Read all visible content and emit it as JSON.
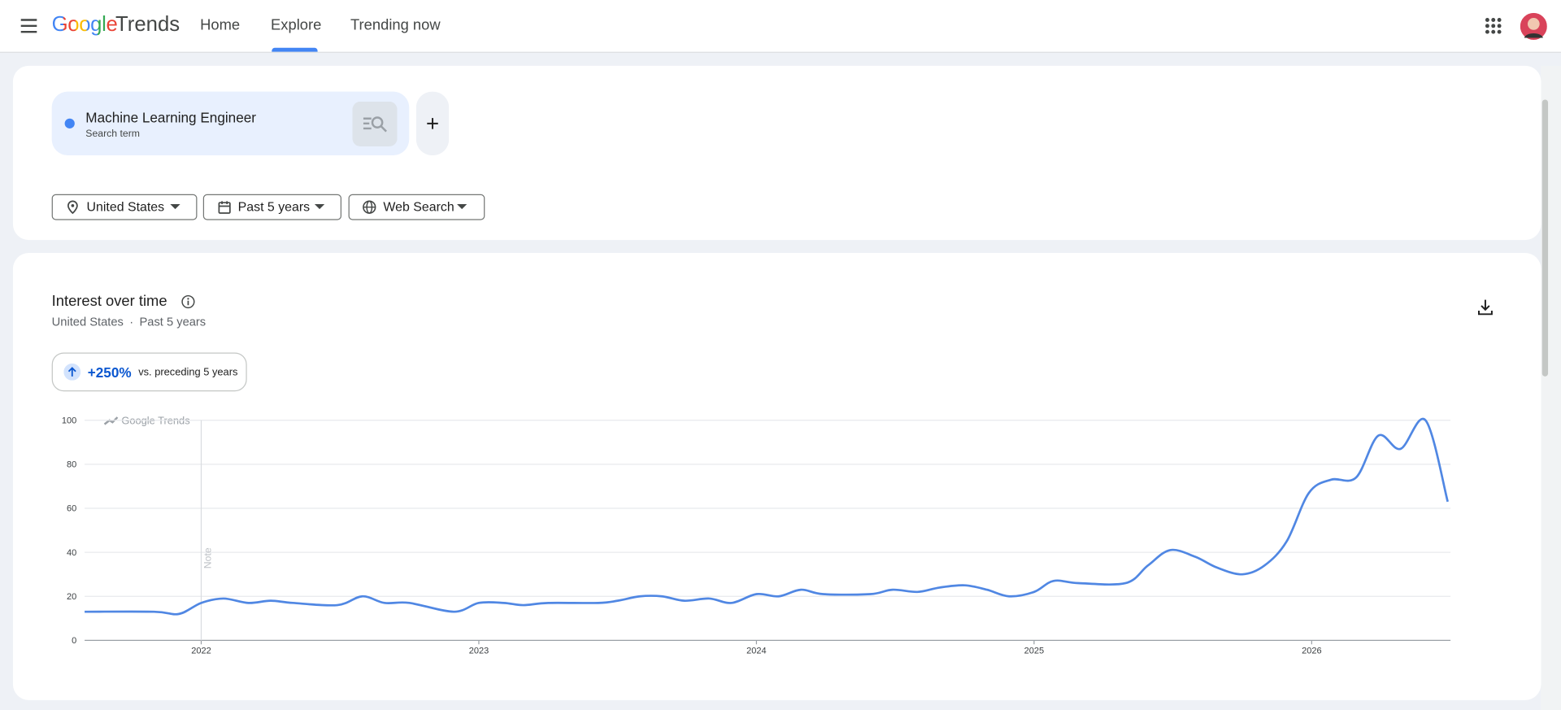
{
  "header": {
    "logo_google": "Google",
    "logo_trends": "Trends",
    "nav": [
      "Home",
      "Explore",
      "Trending now"
    ]
  },
  "search": {
    "term": "Machine Learning Engineer",
    "sublabel": "Search term"
  },
  "filters": [
    "United States",
    "Past 5 years",
    "Web Search"
  ],
  "interest": {
    "location": "United States",
    "period": "Past 5 years",
    "change": "+250%",
    "change_note": "vs. preceding 5 years",
    "watermark": "Google Trends",
    "note": "Note"
  },
  "chart_data": {
    "type": "line",
    "title": "Interest over time",
    "x": [
      2021.58,
      2021.83,
      2021.92,
      2022.0,
      2022.08,
      2022.17,
      2022.25,
      2022.33,
      2022.49,
      2022.58,
      2022.66,
      2022.75,
      2022.91,
      2023.0,
      2023.09,
      2023.16,
      2023.25,
      2023.43,
      2023.5,
      2023.58,
      2023.66,
      2023.74,
      2023.83,
      2023.91,
      2024.0,
      2024.08,
      2024.16,
      2024.24,
      2024.41,
      2024.49,
      2024.58,
      2024.66,
      2024.75,
      2024.83,
      2024.91,
      2025.0,
      2025.07,
      2025.16,
      2025.33,
      2025.41,
      2025.49,
      2025.58,
      2025.66,
      2025.75,
      2025.83,
      2025.91,
      2025.99,
      2026.07,
      2026.16,
      2026.24,
      2026.32,
      2026.41,
      2026.49
    ],
    "series": [
      {
        "name": "Machine Learning Engineer",
        "color": "#5087e3",
        "values": [
          13,
          13,
          12,
          17,
          19,
          17,
          18,
          17,
          16,
          20,
          17,
          17,
          13,
          17,
          17,
          16,
          17,
          17,
          18,
          20,
          20,
          18,
          19,
          17,
          21,
          20,
          23,
          21,
          21,
          23,
          22,
          24,
          25,
          23,
          20,
          22,
          27,
          26,
          26,
          34,
          41,
          38,
          33,
          30,
          34,
          45,
          67,
          73,
          74,
          93,
          87,
          100,
          63
        ]
      }
    ],
    "xlim": [
      2021.58,
      2026.5
    ],
    "xticks": [
      2022,
      2023,
      2024,
      2025,
      2026
    ],
    "ylim": [
      0,
      100
    ],
    "yticks": [
      0,
      20,
      40,
      60,
      80,
      100
    ],
    "grid": true
  }
}
